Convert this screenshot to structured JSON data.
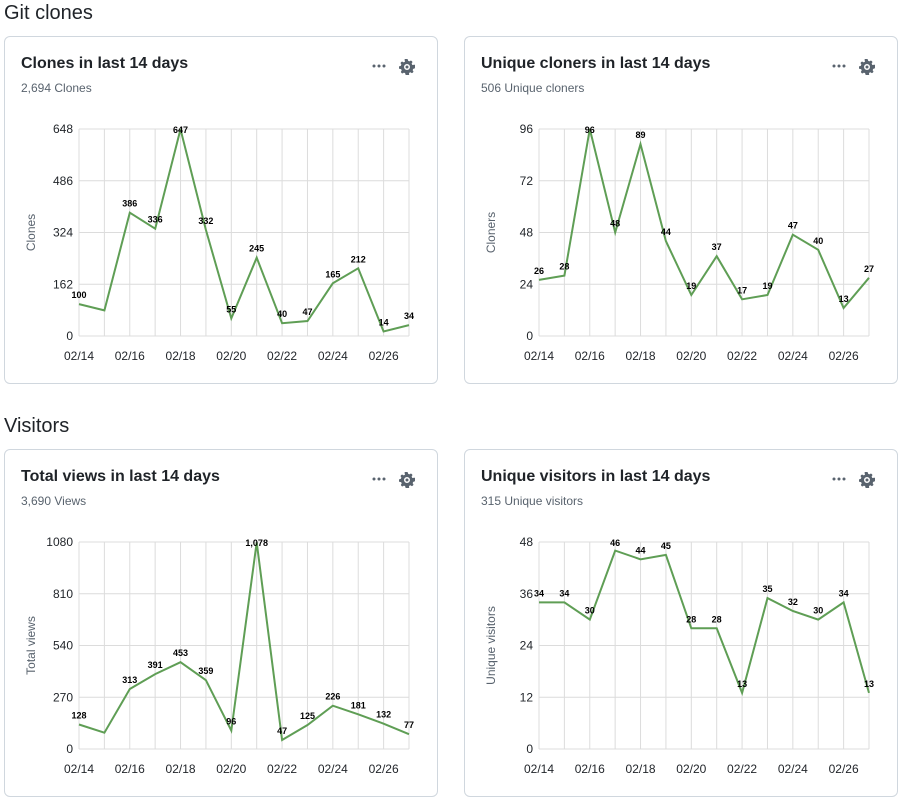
{
  "sections": {
    "clones_title": "Git clones",
    "visitors_title": "Visitors"
  },
  "cards": [
    {
      "title": "Clones in last 14 days",
      "subtitle": "2,694 Clones"
    },
    {
      "title": "Unique cloners in last 14 days",
      "subtitle": "506 Unique cloners"
    },
    {
      "title": "Total views in last 14 days",
      "subtitle": "3,690 Views"
    },
    {
      "title": "Unique visitors in last 14 days",
      "subtitle": "315 Unique visitors"
    }
  ],
  "icons": {
    "menu": "kebab-horizontal-icon",
    "settings": "gear-icon"
  },
  "colors": {
    "line": "#5f9e55",
    "grid": "#dcdcdc",
    "axis": "#9aa0a6"
  },
  "chart_data": [
    {
      "type": "line",
      "title": "Clones in last 14 days",
      "ylabel": "Clones",
      "ylim": [
        0,
        648
      ],
      "yticks": [
        0,
        162,
        324,
        486,
        648
      ],
      "x": [
        "02/14",
        "02/15",
        "02/16",
        "02/17",
        "02/18",
        "02/19",
        "02/20",
        "02/21",
        "02/22",
        "02/23",
        "02/24",
        "02/25",
        "02/26",
        "02/27"
      ],
      "xtick_labels": [
        "02/14",
        "02/16",
        "02/18",
        "02/20",
        "02/22",
        "02/24",
        "02/26"
      ],
      "series": [
        {
          "values": [
            100,
            80,
            386,
            336,
            647,
            332,
            55,
            245,
            40,
            47,
            165,
            212,
            14,
            34
          ]
        }
      ],
      "data_labels": [
        "100",
        null,
        "386",
        "336",
        "647",
        "332",
        "55",
        "245",
        "40",
        "47",
        "165",
        "212",
        "14",
        "34"
      ],
      "grid": true
    },
    {
      "type": "line",
      "title": "Unique cloners in last 14 days",
      "ylabel": "Cloners",
      "ylim": [
        0,
        96
      ],
      "yticks": [
        0,
        24,
        48,
        72,
        96
      ],
      "x": [
        "02/14",
        "02/15",
        "02/16",
        "02/17",
        "02/18",
        "02/19",
        "02/20",
        "02/21",
        "02/22",
        "02/23",
        "02/24",
        "02/25",
        "02/26",
        "02/27"
      ],
      "xtick_labels": [
        "02/14",
        "02/16",
        "02/18",
        "02/20",
        "02/22",
        "02/24",
        "02/26"
      ],
      "series": [
        {
          "values": [
            26,
            28,
            96,
            48,
            89,
            44,
            19,
            37,
            17,
            19,
            47,
            40,
            13,
            27
          ]
        }
      ],
      "data_labels": [
        "26",
        "28",
        "96",
        "48",
        "89",
        "44",
        "19",
        "37",
        "17",
        "19",
        "47",
        "40",
        "13",
        "27"
      ],
      "grid": true
    },
    {
      "type": "line",
      "title": "Total views in last 14 days",
      "ylabel": "Total views",
      "ylim": [
        0,
        1080
      ],
      "yticks": [
        0,
        270,
        540,
        810,
        1080
      ],
      "x": [
        "02/14",
        "02/15",
        "02/16",
        "02/17",
        "02/18",
        "02/19",
        "02/20",
        "02/21",
        "02/22",
        "02/23",
        "02/24",
        "02/25",
        "02/26",
        "02/27"
      ],
      "xtick_labels": [
        "02/14",
        "02/16",
        "02/18",
        "02/20",
        "02/22",
        "02/24",
        "02/26"
      ],
      "series": [
        {
          "values": [
            128,
            85,
            313,
            391,
            453,
            359,
            96,
            1078,
            47,
            125,
            226,
            181,
            132,
            77
          ]
        }
      ],
      "data_labels": [
        "128",
        null,
        "313",
        "391",
        "453",
        "359",
        "96",
        "1,078",
        "47",
        "125",
        "226",
        "181",
        "132",
        "77"
      ],
      "grid": true
    },
    {
      "type": "line",
      "title": "Unique visitors in last 14 days",
      "ylabel": "Unique visitors",
      "ylim": [
        0,
        48
      ],
      "yticks": [
        0,
        12,
        24,
        36,
        48
      ],
      "x": [
        "02/14",
        "02/15",
        "02/16",
        "02/17",
        "02/18",
        "02/19",
        "02/20",
        "02/21",
        "02/22",
        "02/23",
        "02/24",
        "02/25",
        "02/26",
        "02/27"
      ],
      "xtick_labels": [
        "02/14",
        "02/16",
        "02/18",
        "02/20",
        "02/22",
        "02/24",
        "02/26"
      ],
      "series": [
        {
          "values": [
            34,
            34,
            30,
            46,
            44,
            45,
            28,
            28,
            13,
            35,
            32,
            30,
            34,
            13
          ]
        }
      ],
      "data_labels": [
        "34",
        "34",
        "30",
        "46",
        "44",
        "45",
        "28",
        "28",
        "13",
        "35",
        "32",
        "30",
        "34",
        "13"
      ],
      "grid": true
    }
  ]
}
